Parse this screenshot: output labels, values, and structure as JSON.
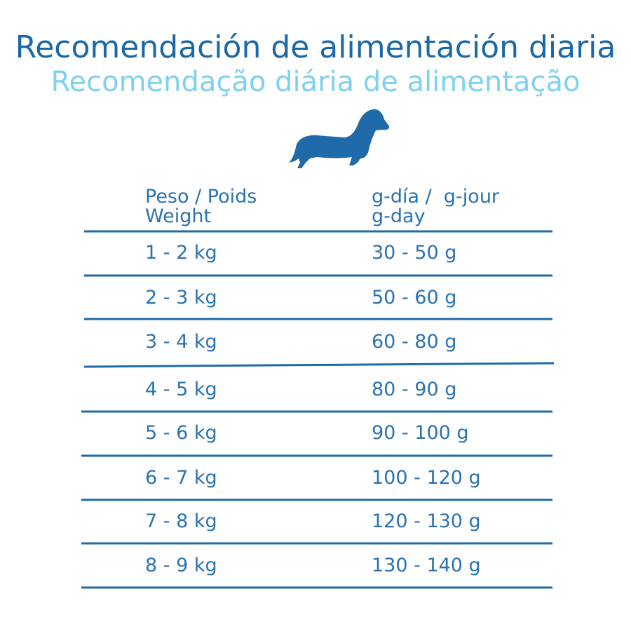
{
  "title": "Recomendación de alimentación diaria",
  "subtitle": "Recomendação diária de alimentação",
  "table": {
    "header": [
      {
        "lines": [
          "Peso / Poids",
          "Weight"
        ]
      },
      {
        "lines": [
          "g-día /  g-jour",
          "g-day"
        ]
      }
    ],
    "rows": [
      [
        "1 - 2 kg",
        "30 - 50 g"
      ],
      [
        "2 - 3 kg",
        "50 - 60 g"
      ],
      [
        "3 - 4 kg",
        "60 - 80 g"
      ],
      [
        "4 - 5 kg",
        "80 - 90 g"
      ],
      [
        "5 - 6 kg",
        "90 - 100 g"
      ],
      [
        "6 - 7 kg",
        "100 - 120 g"
      ],
      [
        "7 - 8 kg",
        "120 - 130 g"
      ],
      [
        "8 - 9 kg",
        "130 - 140 g"
      ]
    ]
  }
}
